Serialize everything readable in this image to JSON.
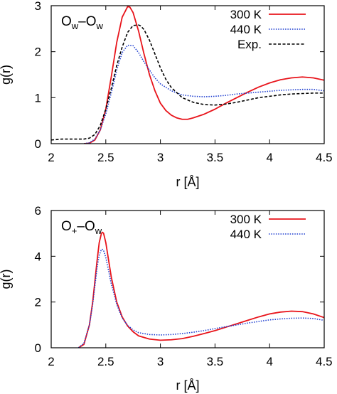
{
  "chart_data": [
    {
      "type": "line",
      "panel_label": "O",
      "panel_label_sub1": "w",
      "panel_label_sep": "–O",
      "panel_label_sub2": "w",
      "xlabel": "r [Å]",
      "ylabel": "g(r)",
      "xlim": [
        2,
        4.5
      ],
      "ylim": [
        0,
        3
      ],
      "x_ticks": [
        2,
        2.5,
        3,
        3.5,
        4,
        4.5
      ],
      "x_tick_labels": [
        "2",
        "2.5",
        "3",
        "3.5",
        "4",
        "4.5"
      ],
      "y_ticks": [
        0,
        1,
        2,
        3
      ],
      "y_tick_labels": [
        "0",
        "1",
        "2",
        "3"
      ],
      "legend_position": "top-right",
      "series": [
        {
          "name": "300 K",
          "color": "#e8141b",
          "style": "solid",
          "x": [
            2.3,
            2.35,
            2.4,
            2.45,
            2.5,
            2.55,
            2.6,
            2.65,
            2.7,
            2.72,
            2.75,
            2.8,
            2.85,
            2.9,
            2.95,
            3.0,
            3.05,
            3.1,
            3.15,
            3.2,
            3.25,
            3.3,
            3.4,
            3.5,
            3.6,
            3.7,
            3.8,
            3.9,
            4.0,
            4.1,
            4.2,
            4.3,
            4.4,
            4.5
          ],
          "y": [
            0.0,
            0.01,
            0.08,
            0.3,
            0.75,
            1.45,
            2.2,
            2.75,
            2.98,
            2.97,
            2.85,
            2.45,
            1.95,
            1.5,
            1.15,
            0.88,
            0.72,
            0.62,
            0.56,
            0.53,
            0.53,
            0.56,
            0.64,
            0.75,
            0.88,
            1.0,
            1.12,
            1.23,
            1.32,
            1.39,
            1.43,
            1.45,
            1.43,
            1.38
          ]
        },
        {
          "name": "440 K",
          "color": "#1f3fd0",
          "style": "dotted",
          "x": [
            2.3,
            2.35,
            2.4,
            2.45,
            2.5,
            2.55,
            2.6,
            2.65,
            2.7,
            2.75,
            2.8,
            2.85,
            2.9,
            2.95,
            3.0,
            3.1,
            3.2,
            3.3,
            3.4,
            3.5,
            3.6,
            3.7,
            3.8,
            3.9,
            4.0,
            4.1,
            4.2,
            4.3,
            4.4,
            4.5
          ],
          "y": [
            0.0,
            0.02,
            0.1,
            0.3,
            0.65,
            1.1,
            1.6,
            1.98,
            2.14,
            2.13,
            1.98,
            1.78,
            1.6,
            1.43,
            1.3,
            1.15,
            1.06,
            1.03,
            1.02,
            1.03,
            1.05,
            1.08,
            1.1,
            1.12,
            1.14,
            1.16,
            1.17,
            1.18,
            1.18,
            1.15
          ]
        },
        {
          "name": "Exp.",
          "color": "#000000",
          "style": "dashed",
          "x": [
            2.0,
            2.1,
            2.2,
            2.3,
            2.35,
            2.4,
            2.45,
            2.5,
            2.55,
            2.6,
            2.65,
            2.7,
            2.75,
            2.8,
            2.82,
            2.85,
            2.9,
            2.95,
            3.0,
            3.05,
            3.1,
            3.2,
            3.3,
            3.4,
            3.5,
            3.6,
            3.7,
            3.8,
            3.9,
            4.0,
            4.1,
            4.2,
            4.3,
            4.4,
            4.5
          ],
          "y": [
            0.08,
            0.1,
            0.1,
            0.1,
            0.12,
            0.2,
            0.4,
            0.75,
            1.2,
            1.7,
            2.1,
            2.42,
            2.57,
            2.58,
            2.56,
            2.48,
            2.25,
            1.95,
            1.65,
            1.4,
            1.22,
            1.0,
            0.9,
            0.85,
            0.84,
            0.86,
            0.9,
            0.95,
            1.0,
            1.03,
            1.06,
            1.08,
            1.09,
            1.1,
            1.1
          ]
        }
      ]
    },
    {
      "type": "line",
      "panel_label": "O",
      "panel_label_sub1": "+",
      "panel_label_sep": "–O",
      "panel_label_sub2": "w",
      "xlabel": "r [Å]",
      "ylabel": "g(r)",
      "xlim": [
        2,
        4.5
      ],
      "ylim": [
        0,
        6
      ],
      "x_ticks": [
        2,
        2.5,
        3,
        3.5,
        4,
        4.5
      ],
      "x_tick_labels": [
        "2",
        "2.5",
        "3",
        "3.5",
        "4",
        "4.5"
      ],
      "y_ticks": [
        0,
        2,
        4,
        6
      ],
      "y_tick_labels": [
        "0",
        "2",
        "4",
        "6"
      ],
      "legend_position": "top-right",
      "series": [
        {
          "name": "300 K",
          "color": "#e8141b",
          "style": "solid",
          "x": [
            2.25,
            2.3,
            2.35,
            2.38,
            2.4,
            2.42,
            2.44,
            2.46,
            2.47,
            2.48,
            2.5,
            2.52,
            2.55,
            2.6,
            2.65,
            2.7,
            2.75,
            2.8,
            2.9,
            3.0,
            3.1,
            3.2,
            3.3,
            3.4,
            3.5,
            3.6,
            3.7,
            3.8,
            3.9,
            4.0,
            4.1,
            4.2,
            4.3,
            4.4,
            4.5
          ],
          "y": [
            0.0,
            0.15,
            1.0,
            2.0,
            2.9,
            3.8,
            4.6,
            5.0,
            5.05,
            5.0,
            4.6,
            4.0,
            3.1,
            2.0,
            1.35,
            0.95,
            0.7,
            0.52,
            0.38,
            0.33,
            0.35,
            0.4,
            0.5,
            0.62,
            0.75,
            0.9,
            1.05,
            1.2,
            1.35,
            1.48,
            1.56,
            1.6,
            1.58,
            1.48,
            1.32
          ]
        },
        {
          "name": "440 K",
          "color": "#1f3fd0",
          "style": "dotted",
          "x": [
            2.25,
            2.3,
            2.35,
            2.38,
            2.4,
            2.42,
            2.44,
            2.46,
            2.47,
            2.48,
            2.5,
            2.52,
            2.55,
            2.6,
            2.65,
            2.7,
            2.75,
            2.8,
            2.9,
            3.0,
            3.1,
            3.2,
            3.3,
            3.4,
            3.5,
            3.6,
            3.7,
            3.8,
            3.9,
            4.0,
            4.1,
            4.2,
            4.3,
            4.4,
            4.5
          ],
          "y": [
            0.0,
            0.2,
            1.0,
            1.9,
            2.7,
            3.5,
            4.05,
            4.3,
            4.3,
            4.25,
            3.95,
            3.5,
            2.8,
            1.9,
            1.3,
            0.98,
            0.78,
            0.66,
            0.58,
            0.56,
            0.58,
            0.62,
            0.68,
            0.75,
            0.84,
            0.92,
            1.0,
            1.08,
            1.15,
            1.22,
            1.26,
            1.29,
            1.3,
            1.28,
            1.2
          ]
        }
      ]
    }
  ]
}
